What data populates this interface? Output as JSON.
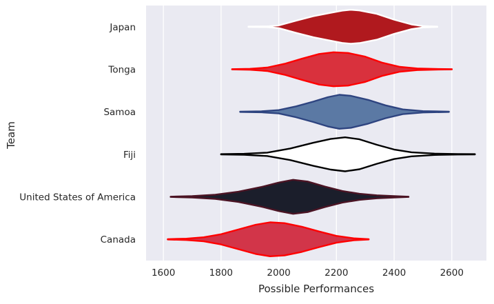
{
  "chart_data": {
    "type": "violin",
    "title": "",
    "xlabel": "Possible Performances",
    "ylabel": "Team",
    "xlim": [
      1540,
      2720
    ],
    "xticks": [
      1600,
      1800,
      2000,
      2200,
      2400,
      2600
    ],
    "grid": true,
    "orientation": "horizontal",
    "background": "#eaeaf2",
    "grid_color": "#ffffff",
    "series": [
      {
        "name": "Japan",
        "fill": "#b0191e",
        "line": "#ffffff",
        "min": 1895,
        "max": 2550,
        "profile": [
          [
            1895,
            0.01
          ],
          [
            1960,
            0.02
          ],
          [
            2000,
            0.08
          ],
          [
            2060,
            0.36
          ],
          [
            2120,
            0.62
          ],
          [
            2180,
            0.82
          ],
          [
            2220,
            0.95
          ],
          [
            2250,
            1.0
          ],
          [
            2280,
            0.96
          ],
          [
            2340,
            0.76
          ],
          [
            2400,
            0.42
          ],
          [
            2460,
            0.14
          ],
          [
            2500,
            0.04
          ],
          [
            2550,
            0.01
          ]
        ]
      },
      {
        "name": "Tonga",
        "fill": "#d9313d",
        "line": "#ff0000",
        "min": 1838,
        "max": 2600,
        "profile": [
          [
            1838,
            0.01
          ],
          [
            1900,
            0.03
          ],
          [
            1960,
            0.1
          ],
          [
            2020,
            0.32
          ],
          [
            2080,
            0.62
          ],
          [
            2140,
            0.9
          ],
          [
            2190,
            1.0
          ],
          [
            2240,
            0.96
          ],
          [
            2300,
            0.74
          ],
          [
            2360,
            0.38
          ],
          [
            2420,
            0.14
          ],
          [
            2480,
            0.05
          ],
          [
            2540,
            0.02
          ],
          [
            2600,
            0.01
          ]
        ]
      },
      {
        "name": "Samoa",
        "fill": "#5b79a4",
        "line": "#2e4480",
        "min": 1866,
        "max": 2590,
        "profile": [
          [
            1866,
            0.01
          ],
          [
            1940,
            0.03
          ],
          [
            2000,
            0.1
          ],
          [
            2060,
            0.32
          ],
          [
            2120,
            0.6
          ],
          [
            2170,
            0.86
          ],
          [
            2210,
            1.0
          ],
          [
            2250,
            0.94
          ],
          [
            2310,
            0.7
          ],
          [
            2370,
            0.38
          ],
          [
            2430,
            0.14
          ],
          [
            2500,
            0.04
          ],
          [
            2590,
            0.01
          ]
        ]
      },
      {
        "name": "Fiji",
        "fill": "#ffffff",
        "line": "#000000",
        "min": 1800,
        "max": 2680,
        "profile": [
          [
            1800,
            0.01
          ],
          [
            1880,
            0.03
          ],
          [
            1960,
            0.1
          ],
          [
            2040,
            0.34
          ],
          [
            2120,
            0.68
          ],
          [
            2180,
            0.9
          ],
          [
            2230,
            1.0
          ],
          [
            2280,
            0.88
          ],
          [
            2340,
            0.56
          ],
          [
            2400,
            0.28
          ],
          [
            2460,
            0.12
          ],
          [
            2540,
            0.04
          ],
          [
            2620,
            0.015
          ],
          [
            2680,
            0.01
          ]
        ]
      },
      {
        "name": "United States of America",
        "fill": "#1b1e2b",
        "line": "#4b1424",
        "min": 1625,
        "max": 2450,
        "profile": [
          [
            1625,
            0.01
          ],
          [
            1700,
            0.04
          ],
          [
            1780,
            0.12
          ],
          [
            1860,
            0.3
          ],
          [
            1940,
            0.58
          ],
          [
            2000,
            0.84
          ],
          [
            2050,
            1.0
          ],
          [
            2100,
            0.9
          ],
          [
            2160,
            0.6
          ],
          [
            2220,
            0.34
          ],
          [
            2280,
            0.18
          ],
          [
            2340,
            0.09
          ],
          [
            2400,
            0.04
          ],
          [
            2450,
            0.01
          ]
        ]
      },
      {
        "name": "Canada",
        "fill": "#d23549",
        "line": "#ff0000",
        "min": 1615,
        "max": 2312,
        "profile": [
          [
            1615,
            0.01
          ],
          [
            1680,
            0.04
          ],
          [
            1740,
            0.12
          ],
          [
            1800,
            0.3
          ],
          [
            1860,
            0.58
          ],
          [
            1920,
            0.86
          ],
          [
            1970,
            1.0
          ],
          [
            2020,
            0.95
          ],
          [
            2080,
            0.74
          ],
          [
            2140,
            0.46
          ],
          [
            2200,
            0.2
          ],
          [
            2260,
            0.06
          ],
          [
            2312,
            0.01
          ]
        ]
      }
    ]
  }
}
